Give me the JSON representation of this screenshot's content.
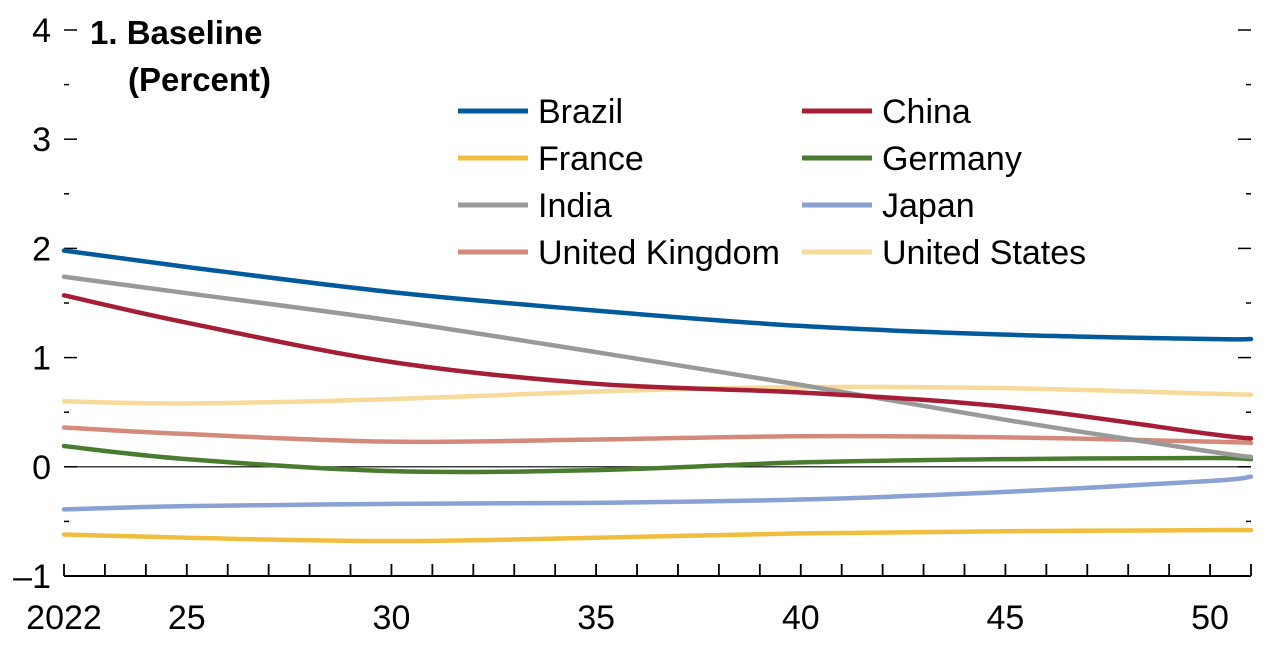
{
  "chart_data": {
    "type": "line",
    "title": "1. Baseline",
    "subtitle": "(Percent)",
    "xlabel": "",
    "ylabel": "",
    "xlim": [
      2022,
      2051
    ],
    "ylim": [
      -1,
      4
    ],
    "x_ticks": [
      {
        "value": 2022,
        "label": "2022"
      },
      {
        "value": 2025,
        "label": "25"
      },
      {
        "value": 2030,
        "label": "30"
      },
      {
        "value": 2035,
        "label": "35"
      },
      {
        "value": 2040,
        "label": "40"
      },
      {
        "value": 2045,
        "label": "45"
      },
      {
        "value": 2050,
        "label": "50"
      }
    ],
    "y_ticks": [
      {
        "value": 4,
        "label": "4"
      },
      {
        "value": 3,
        "label": "3"
      },
      {
        "value": 2,
        "label": "2"
      },
      {
        "value": 1,
        "label": "1"
      },
      {
        "value": 0,
        "label": "0"
      },
      {
        "value": -1,
        "label": "–1"
      }
    ],
    "grid": false,
    "zero_line": true,
    "legend_position": "top-center",
    "series": [
      {
        "name": "Brazil",
        "color": "#005a9c",
        "x": [
          2022,
          2025,
          2030,
          2035,
          2040,
          2045,
          2050,
          2051
        ],
        "y": [
          1.98,
          1.83,
          1.6,
          1.43,
          1.29,
          1.21,
          1.17,
          1.17
        ]
      },
      {
        "name": "China",
        "color": "#a51e36",
        "x": [
          2022,
          2025,
          2030,
          2035,
          2040,
          2045,
          2050,
          2051
        ],
        "y": [
          1.57,
          1.32,
          0.96,
          0.76,
          0.68,
          0.55,
          0.3,
          0.26
        ]
      },
      {
        "name": "France",
        "color": "#f0bd3f",
        "x": [
          2022,
          2025,
          2030,
          2035,
          2040,
          2045,
          2050,
          2051
        ],
        "y": [
          -0.62,
          -0.65,
          -0.68,
          -0.65,
          -0.61,
          -0.59,
          -0.58,
          -0.58
        ]
      },
      {
        "name": "Germany",
        "color": "#4a7c2f",
        "x": [
          2022,
          2025,
          2030,
          2035,
          2040,
          2045,
          2050,
          2051
        ],
        "y": [
          0.19,
          0.07,
          -0.04,
          -0.03,
          0.04,
          0.07,
          0.08,
          0.07
        ]
      },
      {
        "name": "India",
        "color": "#999999",
        "x": [
          2022,
          2025,
          2030,
          2035,
          2040,
          2045,
          2050,
          2051
        ],
        "y": [
          1.74,
          1.59,
          1.34,
          1.05,
          0.75,
          0.43,
          0.14,
          0.09
        ]
      },
      {
        "name": "Japan",
        "color": "#8aa1d3",
        "x": [
          2022,
          2025,
          2030,
          2035,
          2040,
          2045,
          2050,
          2051
        ],
        "y": [
          -0.39,
          -0.36,
          -0.34,
          -0.33,
          -0.3,
          -0.23,
          -0.13,
          -0.09
        ]
      },
      {
        "name": "United Kingdom",
        "color": "#d48a7a",
        "x": [
          2022,
          2025,
          2030,
          2035,
          2040,
          2045,
          2050,
          2051
        ],
        "y": [
          0.36,
          0.3,
          0.23,
          0.25,
          0.28,
          0.27,
          0.23,
          0.22
        ]
      },
      {
        "name": "United States",
        "color": "#f7d99a",
        "x": [
          2022,
          2025,
          2030,
          2035,
          2040,
          2045,
          2050,
          2051
        ],
        "y": [
          0.6,
          0.58,
          0.62,
          0.69,
          0.73,
          0.72,
          0.67,
          0.66
        ]
      }
    ]
  }
}
